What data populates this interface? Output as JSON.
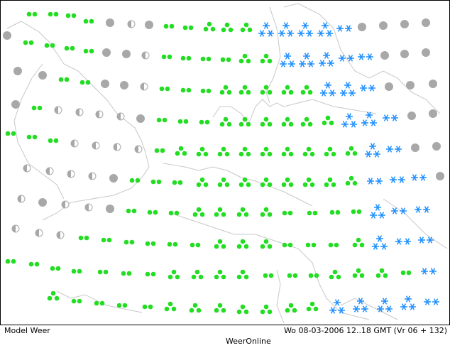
{
  "footer": {
    "left": "Model Weer",
    "right": "Wo 08-03-2006 12..18 GMT (Vr 06 + 132)",
    "source": "WeerOnline"
  }
}
